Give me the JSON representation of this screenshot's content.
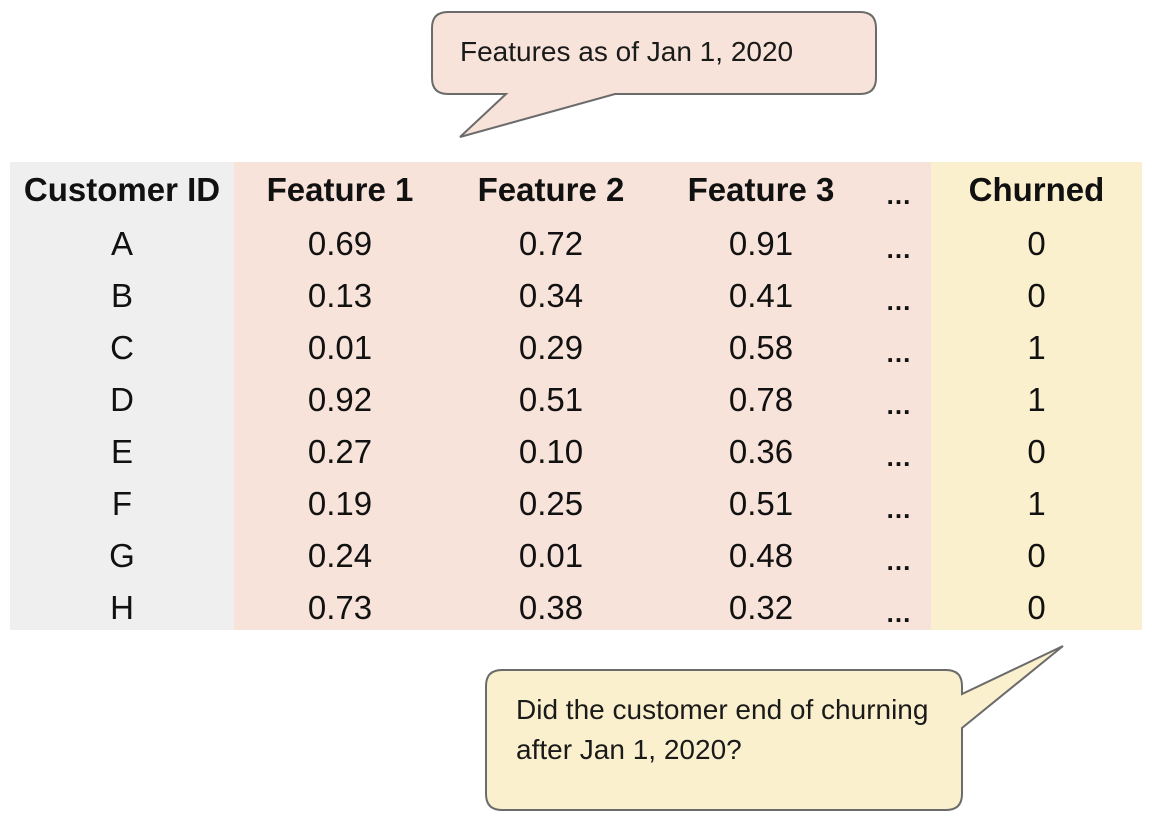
{
  "callouts": {
    "top": "Features as of Jan 1, 2020",
    "bottom": "Did the customer end of churning after Jan 1, 2020?"
  },
  "colors": {
    "id_column_bg": "#efefef",
    "feature_columns_bg": "#f7e3d9",
    "target_column_bg": "#fbf0cd",
    "callout_top_fill": "#f7e3d9",
    "callout_bottom_fill": "#fbf0cd",
    "callout_stroke": "#6b6b6b"
  },
  "table": {
    "headers": [
      "Customer ID",
      "Feature 1",
      "Feature 2",
      "Feature 3",
      "…",
      "Churned"
    ],
    "rows": [
      [
        "A",
        "0.69",
        "0.72",
        "0.91",
        "…",
        "0"
      ],
      [
        "B",
        "0.13",
        "0.34",
        "0.41",
        "…",
        "0"
      ],
      [
        "C",
        "0.01",
        "0.29",
        "0.58",
        "…",
        "1"
      ],
      [
        "D",
        "0.92",
        "0.51",
        "0.78",
        "…",
        "1"
      ],
      [
        "E",
        "0.27",
        "0.10",
        "0.36",
        "…",
        "0"
      ],
      [
        "F",
        "0.19",
        "0.25",
        "0.51",
        "…",
        "1"
      ],
      [
        "G",
        "0.24",
        "0.01",
        "0.48",
        "…",
        "0"
      ],
      [
        "H",
        "0.73",
        "0.38",
        "0.32",
        "…",
        "0"
      ]
    ]
  }
}
